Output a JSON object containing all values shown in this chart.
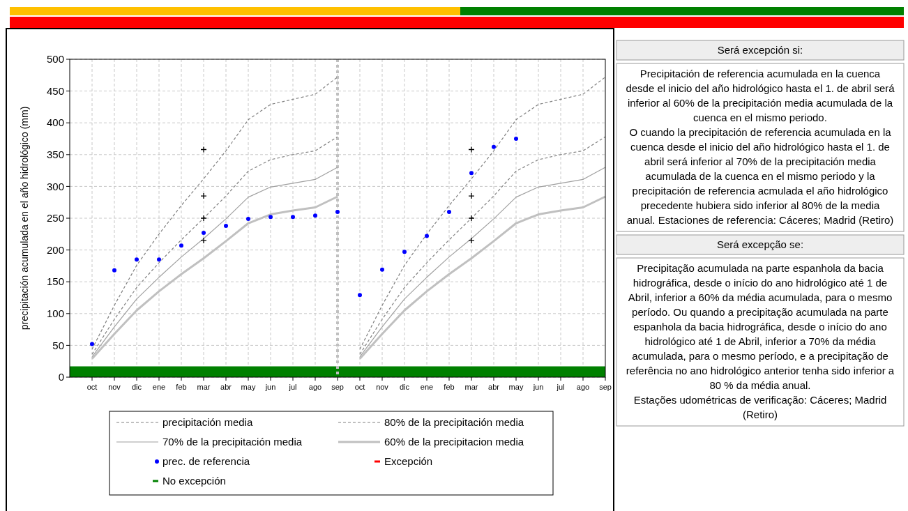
{
  "chart_data": [
    {
      "type": "line",
      "ylabel": "precipitación acumulada en el año hidrológico (mm)",
      "categories": [
        "oct",
        "nov",
        "dic",
        "ene",
        "feb",
        "mar",
        "abr",
        "may",
        "jun",
        "jul",
        "ago",
        "sep",
        "oct",
        "nov",
        "dic",
        "ene",
        "feb",
        "mar",
        "abr",
        "may",
        "jun",
        "jul",
        "ago",
        "sep"
      ],
      "ylim": [
        0,
        500
      ],
      "yticks": [
        0,
        50,
        100,
        150,
        200,
        250,
        300,
        350,
        400,
        450,
        500
      ],
      "grid": true,
      "legend": "bottom",
      "ref_lines": [
        {
          "axis": "x",
          "value": "sep",
          "color": "#c0c0c0",
          "line_style": "dotted"
        }
      ],
      "bands": [
        {
          "axis": "y",
          "from": 0,
          "to": 17,
          "color": "#008000",
          "label": "No excepción"
        }
      ],
      "series": [
        {
          "type": "line",
          "name": "precipitación media",
          "color": "#808080",
          "line_style": "dashed",
          "values": [
            44,
            113,
            176,
            225,
            270,
            312,
            356,
            405,
            429,
            437,
            445,
            472,
            null,
            null,
            null,
            null,
            null,
            null,
            null,
            null,
            null,
            null,
            null,
            null
          ]
        },
        {
          "type": "line",
          "color": "#808080",
          "line_style": "dashed",
          "values": [
            null,
            null,
            null,
            null,
            null,
            null,
            null,
            null,
            null,
            null,
            null,
            null,
            44,
            113,
            176,
            225,
            270,
            312,
            356,
            405,
            429,
            437,
            445,
            472
          ]
        },
        {
          "type": "line",
          "name": "80% de la precipitación media",
          "color": "#808080",
          "line_style": "dashed",
          "values": [
            36,
            91,
            141,
            180,
            216,
            250,
            285,
            324,
            342,
            350,
            356,
            378,
            null,
            null,
            null,
            null,
            null,
            null,
            null,
            null,
            null,
            null,
            null,
            null
          ]
        },
        {
          "type": "line",
          "color": "#808080",
          "line_style": "dashed",
          "values": [
            null,
            null,
            null,
            null,
            null,
            null,
            null,
            null,
            null,
            null,
            null,
            null,
            36,
            91,
            141,
            180,
            216,
            250,
            285,
            324,
            342,
            350,
            356,
            378
          ]
        },
        {
          "type": "line",
          "name": "70% de la precipitación media",
          "color": "#a0a0a0",
          "line_style": "solid",
          "values": [
            32,
            79,
            123,
            157,
            189,
            218,
            249,
            283,
            299,
            305,
            311,
            330,
            null,
            null,
            null,
            null,
            null,
            null,
            null,
            null,
            null,
            null,
            null,
            null
          ]
        },
        {
          "type": "line",
          "color": "#a0a0a0",
          "line_style": "solid",
          "values": [
            null,
            null,
            null,
            null,
            null,
            null,
            null,
            null,
            null,
            null,
            null,
            null,
            32,
            79,
            123,
            157,
            189,
            218,
            249,
            283,
            299,
            305,
            311,
            330
          ]
        },
        {
          "type": "line",
          "name": "60% de la precipitacion media",
          "color": "#c0c0c0",
          "line_style": "solid",
          "values": [
            29,
            68,
            105,
            135,
            162,
            187,
            214,
            242,
            256,
            262,
            267,
            284,
            null,
            null,
            null,
            null,
            null,
            null,
            null,
            null,
            null,
            null,
            null,
            null
          ]
        },
        {
          "type": "line",
          "color": "#c0c0c0",
          "line_style": "solid",
          "values": [
            null,
            null,
            null,
            null,
            null,
            null,
            null,
            null,
            null,
            null,
            null,
            null,
            29,
            68,
            105,
            135,
            162,
            187,
            214,
            242,
            256,
            262,
            267,
            284
          ]
        },
        {
          "type": "scatter",
          "name": "prec. de referencia",
          "color": "#0000ff",
          "marker": "circle",
          "values": [
            52,
            168,
            185,
            185,
            207,
            227,
            238,
            249,
            252,
            252,
            254,
            260,
            129,
            169,
            197,
            222,
            260,
            321,
            362,
            375,
            null,
            null,
            null,
            null
          ]
        },
        {
          "type": "scatter",
          "color": "#000000",
          "marker": "cross",
          "values": [
            null,
            null,
            null,
            null,
            null,
            358,
            null,
            null,
            null,
            null,
            null,
            null,
            null,
            null,
            null,
            null,
            null,
            358,
            null,
            null,
            null,
            null,
            null,
            null
          ]
        },
        {
          "type": "scatter",
          "color": "#000000",
          "marker": "cross",
          "values": [
            null,
            null,
            null,
            null,
            null,
            285,
            null,
            null,
            null,
            null,
            null,
            null,
            null,
            null,
            null,
            null,
            null,
            285,
            null,
            null,
            null,
            null,
            null,
            null
          ]
        },
        {
          "type": "scatter",
          "color": "#000000",
          "marker": "cross",
          "values": [
            null,
            null,
            null,
            null,
            null,
            250,
            null,
            null,
            null,
            null,
            null,
            null,
            null,
            null,
            null,
            null,
            null,
            250,
            null,
            null,
            null,
            null,
            null,
            null
          ]
        },
        {
          "type": "scatter",
          "color": "#000000",
          "marker": "cross",
          "values": [
            null,
            null,
            null,
            null,
            null,
            215,
            null,
            null,
            null,
            null,
            null,
            null,
            null,
            null,
            null,
            null,
            null,
            215,
            null,
            null,
            null,
            null,
            null,
            null
          ]
        },
        {
          "type": "bar",
          "name": "Excepción",
          "color": "#ff0000",
          "values": [
            null,
            null,
            null,
            null,
            null,
            null,
            null,
            null,
            null,
            null,
            null,
            null,
            null,
            null,
            null,
            null,
            null,
            null,
            null,
            null,
            null,
            null,
            null,
            null
          ]
        }
      ]
    },
    {
      "type": "other",
      "annotations": [
        "Será excepción si:",
        "Precipitación de referencia acumulada en la cuenca desde el inicio del año hidrológico hasta el 1. de abril será inferior al 60% de la precipitación media acumulada de la cuenca en el mismo periodo.\nO cuando la precipitación de referencia acumulada en la cuenca desde el inicio del año hidrológico hasta el 1. de abril será inferior al 70% de la precipitación media acumulada de la cuenca en el mismo periodo y la precipitación de referencia acmulada el año hidrológico precedente hubiera sido inferior al 80% de la media anual. Estaciones de referencia: Cáceres; Madrid (Retiro)",
        "Será excepção se:",
        "Precipitação acumulada na parte espanhola da bacia hidrográfica, desde o início do ano hidrológico até 1 de Abril, inferior a 60% da média acumulada, para o mesmo período. Ou quando a precipitação acumulada na parte espanhola da bacia hidrográfica, desde o início do ano hidrológico até 1 de Abril, inferior a 70% da média acumulada, para o mesmo período, e a precipitação de referência no ano hidrológico anterior tenha sido inferior a 80 % da média anual.\nEstações udométricas de verificação: Cáceres; Madrid (Retiro)"
      ]
    }
  ]
}
